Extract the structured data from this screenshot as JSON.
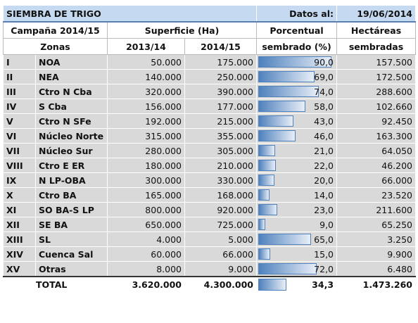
{
  "header": {
    "title": "SIEMBRA DE TRIGO",
    "date_label": "Datos al:",
    "date": "19/06/2014"
  },
  "table": {
    "headers": [
      "Campaña 2014/15",
      "Superficie (Ha)",
      "Porcentual",
      "Hectáreas"
    ],
    "subheaders": [
      "Zonas",
      "2013/14",
      "2014/15",
      "sembrado (%)",
      "sembradas"
    ],
    "rows": [
      [
        "I",
        "NOA",
        "50.000",
        "175.000",
        "90,0",
        "157.500"
      ],
      [
        "II",
        "NEA",
        "140.000",
        "250.000",
        "69,0",
        "172.500"
      ],
      [
        "III",
        "Ctro N Cba",
        "320.000",
        "390.000",
        "74,0",
        "288.600"
      ],
      [
        "IV",
        "S Cba",
        "156.000",
        "177.000",
        "58,0",
        "102.660"
      ],
      [
        "V",
        "Ctro N SFe",
        "192.000",
        "215.000",
        "43,0",
        "92.450"
      ],
      [
        "VI",
        "Núcleo Norte",
        "315.000",
        "355.000",
        "46,0",
        "163.300"
      ],
      [
        "VII",
        "Núcleo Sur",
        "280.000",
        "305.000",
        "21,0",
        "64.050"
      ],
      [
        "VIII",
        "Ctro E ER",
        "180.000",
        "210.000",
        "22,0",
        "46.200"
      ],
      [
        "IX",
        "N LP-OBA",
        "300.000",
        "330.000",
        "20,0",
        "66.000"
      ],
      [
        "X",
        "Ctro BA",
        "165.000",
        "168.000",
        "14,0",
        "23.520"
      ],
      [
        "XI",
        "SO BA-S LP",
        "800.000",
        "920.000",
        "23,0",
        "211.600"
      ],
      [
        "XII",
        "SE BA",
        "650.000",
        "725.000",
        "9,0",
        "65.250"
      ],
      [
        "XIII",
        "SL",
        "4.000",
        "5.000",
        "65,0",
        "3.250"
      ],
      [
        "XIV",
        "Cuenca Sal",
        "60.000",
        "66.000",
        "15,0",
        "9.900"
      ],
      [
        "XV",
        "Otras",
        "8.000",
        "9.000",
        "72,0",
        "6.480"
      ]
    ],
    "total": [
      "TOTAL",
      "3.620.000",
      "4.300.000",
      "34,3",
      "1.473.260"
    ]
  }
}
